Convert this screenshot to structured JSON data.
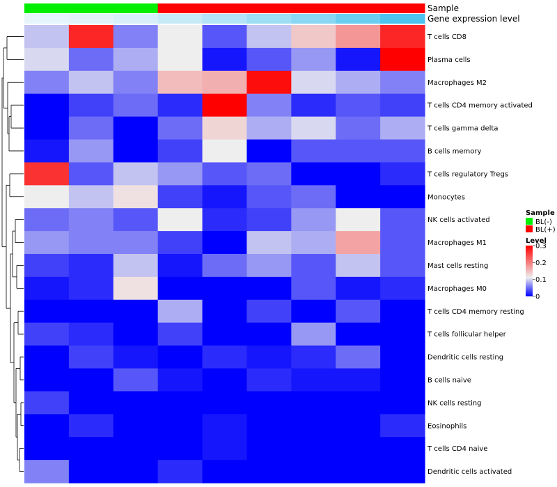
{
  "chart_data": {
    "type": "heatmap",
    "annotation_labels": {
      "sample": "Sample",
      "expression": "Gene expression level"
    },
    "columns": [
      {
        "sample": "BL(-)",
        "expression": 0.02
      },
      {
        "sample": "BL(-)",
        "expression": 0.03
      },
      {
        "sample": "BL(-)",
        "expression": 0.05
      },
      {
        "sample": "BL(+)",
        "expression": 0.08
      },
      {
        "sample": "BL(+)",
        "expression": 0.12
      },
      {
        "sample": "BL(+)",
        "expression": 0.16
      },
      {
        "sample": "BL(+)",
        "expression": 0.2
      },
      {
        "sample": "BL(+)",
        "expression": 0.26
      },
      {
        "sample": "BL(+)",
        "expression": 0.32
      }
    ],
    "rows": [
      "T cells CD8",
      "Plasma cells",
      "Macrophages M2",
      "T cells CD4 memory activated",
      "T cells gamma delta",
      "B cells memory",
      "T cells regulatory  Tregs",
      "Monocytes",
      "NK cells activated",
      "Macrophages M1",
      "Mast cells resting",
      "Macrophages M0",
      "T cells CD4 memory resting",
      "T cells follicular helper",
      "Dendritic cells resting",
      "B cells naive",
      "NK cells resting",
      "Eosinophils",
      "T cells CD4 naive",
      "Dendritic cells activated"
    ],
    "values": [
      [
        0.09,
        0.27,
        0.06,
        0.11,
        0.04,
        0.09,
        0.14,
        0.18,
        0.27
      ],
      [
        0.1,
        0.05,
        0.08,
        0.11,
        0.01,
        0.04,
        0.07,
        0.01,
        0.3
      ],
      [
        0.06,
        0.09,
        0.06,
        0.15,
        0.16,
        0.29,
        0.1,
        0.08,
        0.06
      ],
      [
        0.0,
        0.03,
        0.05,
        0.02,
        0.3,
        0.06,
        0.02,
        0.04,
        0.03
      ],
      [
        0.0,
        0.05,
        0.0,
        0.05,
        0.13,
        0.08,
        0.1,
        0.05,
        0.08
      ],
      [
        0.01,
        0.07,
        0.0,
        0.03,
        0.11,
        0.0,
        0.04,
        0.04,
        0.04
      ],
      [
        0.26,
        0.04,
        0.09,
        0.07,
        0.04,
        0.05,
        0.0,
        0.0,
        0.02
      ],
      [
        0.11,
        0.09,
        0.12,
        0.03,
        0.01,
        0.04,
        0.05,
        0.0,
        0.0
      ],
      [
        0.05,
        0.06,
        0.04,
        0.11,
        0.02,
        0.03,
        0.07,
        0.11,
        0.04
      ],
      [
        0.07,
        0.06,
        0.06,
        0.03,
        0.0,
        0.09,
        0.08,
        0.17,
        0.04
      ],
      [
        0.03,
        0.02,
        0.09,
        0.01,
        0.05,
        0.07,
        0.04,
        0.09,
        0.04
      ],
      [
        0.01,
        0.02,
        0.12,
        0.0,
        0.0,
        0.0,
        0.04,
        0.01,
        0.02
      ],
      [
        0.0,
        0.0,
        0.0,
        0.08,
        0.0,
        0.03,
        0.0,
        0.04,
        0.0
      ],
      [
        0.03,
        0.02,
        0.0,
        0.03,
        0.0,
        0.0,
        0.07,
        0.0,
        0.0
      ],
      [
        0.0,
        0.03,
        0.01,
        0.0,
        0.02,
        0.01,
        0.02,
        0.05,
        0.0
      ],
      [
        0.0,
        0.0,
        0.04,
        0.01,
        0.0,
        0.02,
        0.01,
        0.01,
        0.0
      ],
      [
        0.03,
        0.0,
        0.0,
        0.0,
        0.0,
        0.0,
        0.0,
        0.0,
        0.0
      ],
      [
        0.0,
        0.02,
        0.0,
        0.0,
        0.01,
        0.0,
        0.0,
        0.0,
        0.02
      ],
      [
        0.0,
        0.0,
        0.0,
        0.0,
        0.01,
        0.0,
        0.0,
        0.0,
        0.0
      ],
      [
        0.06,
        0.0,
        0.0,
        0.02,
        0.0,
        0.0,
        0.0,
        0.0,
        0.0
      ]
    ],
    "legend": {
      "sample": {
        "title": "Sample",
        "entries": [
          {
            "label": "BL(-)",
            "color": "#00ee00"
          },
          {
            "label": "BL(+)",
            "color": "#ff0000"
          }
        ]
      },
      "level": {
        "title": "Level",
        "ticks": [
          "0.3",
          "0.2",
          "0.1",
          "0"
        ],
        "tick_values": [
          0.3,
          0.2,
          0.1,
          0.0
        ]
      }
    },
    "colors": {
      "low": "#0000ff",
      "mid": "#eeeeee",
      "high": "#ff0000",
      "expression_low": "#e6f4fb",
      "expression_high": "#4cc4ee",
      "dendrogram": "#000000"
    },
    "scale": {
      "min": 0.0,
      "mid": 0.11,
      "max": 0.3
    },
    "legend_placement": "right"
  }
}
